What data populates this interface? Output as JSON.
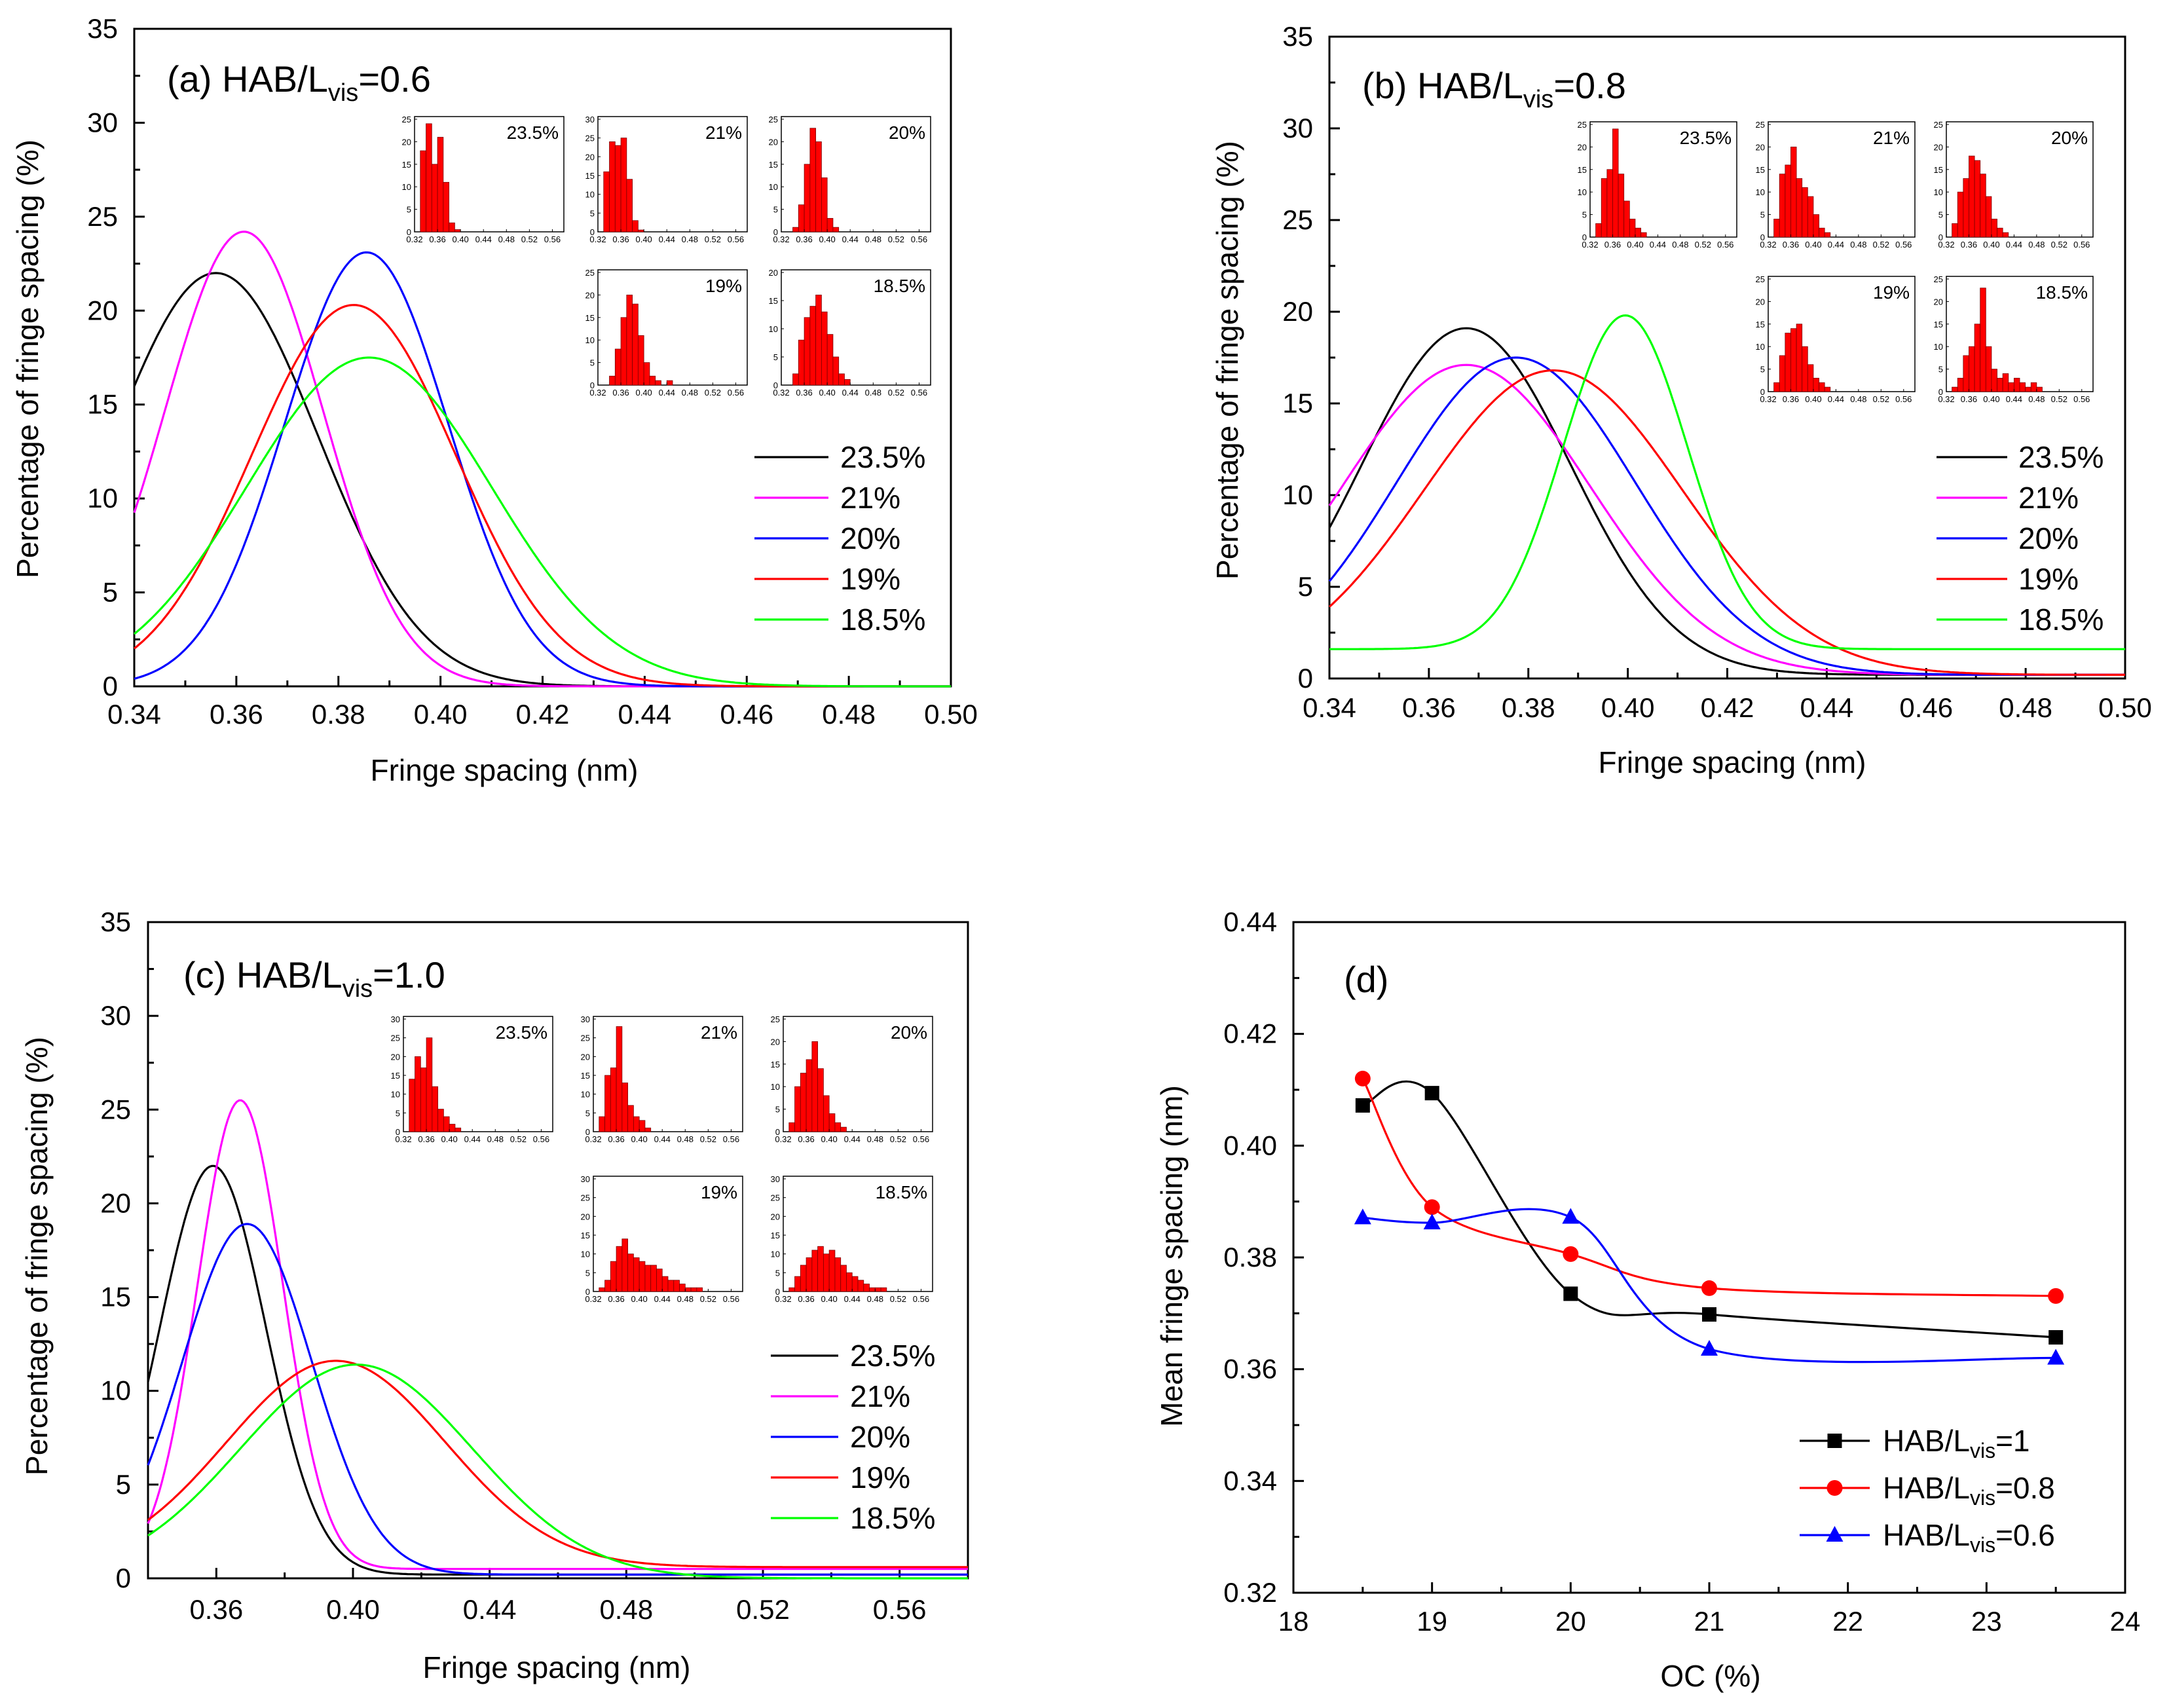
{
  "colors": {
    "23.5%": "#000000",
    "21%": "#ff00ff",
    "20%": "#0000ff",
    "19%": "#ff0000",
    "18.5%": "#00ff00",
    "hist": "#ff0000"
  },
  "chart_data": [
    {
      "id": "a",
      "type": "line",
      "title_main": "(a) HAB/L",
      "title_sub": "vis",
      "title_tail": "=0.6",
      "xlabel": "Fringe spacing (nm)",
      "ylabel": "Percentage of fringe spacing (%)",
      "xlim": [
        0.34,
        0.5
      ],
      "ylim": [
        0,
        35
      ],
      "xticks": [
        0.34,
        0.36,
        0.38,
        0.4,
        0.42,
        0.44,
        0.46,
        0.48,
        0.5
      ],
      "xtick_labels": [
        "0.34",
        "0.36",
        "0.38",
        "0.40",
        "0.42",
        "0.44",
        "0.46",
        "0.48",
        "0.50"
      ],
      "yticks": [
        0,
        5,
        10,
        15,
        20,
        25,
        30,
        35
      ],
      "ytick_labels": [
        "0",
        "5",
        "10",
        "15",
        "20",
        "25",
        "30",
        "35"
      ],
      "legend": [
        "23.5%",
        "21%",
        "20%",
        "19%",
        "18.5%"
      ],
      "series": [
        {
          "name": "23.5%",
          "base": 0.0,
          "amp": 22.0,
          "mu": 0.356,
          "sigma": 0.02
        },
        {
          "name": "21%",
          "base": 0.0,
          "amp": 24.2,
          "mu": 0.3615,
          "sigma": 0.0155
        },
        {
          "name": "20%",
          "base": 0.0,
          "amp": 23.1,
          "mu": 0.3855,
          "sigma": 0.016
        },
        {
          "name": "19%",
          "base": 0.0,
          "amp": 20.3,
          "mu": 0.383,
          "sigma": 0.02
        },
        {
          "name": "18.5%",
          "base": 0.0,
          "amp": 17.5,
          "mu": 0.386,
          "sigma": 0.024
        }
      ],
      "insets": [
        {
          "label": "23.5%",
          "xticks": [
            "0.32",
            "0.36",
            "0.40",
            "0.44",
            "0.48",
            "0.52",
            "0.56"
          ],
          "yticks": [
            "0",
            "5",
            "10",
            "15",
            "20",
            "25"
          ],
          "ymax": 25,
          "bins_start": 0.32,
          "bin_width": 0.01,
          "values": [
            0,
            18,
            24,
            15,
            21,
            11,
            2,
            0.5
          ]
        },
        {
          "label": "21%",
          "xticks": [
            "0.32",
            "0.36",
            "0.40",
            "0.44",
            "0.48",
            "0.52",
            "0.56"
          ],
          "yticks": [
            "0",
            "5",
            "10",
            "15",
            "20",
            "25",
            "30"
          ],
          "ymax": 30,
          "bins_start": 0.32,
          "bin_width": 0.01,
          "values": [
            0,
            16,
            24,
            23,
            25,
            14,
            3,
            0.5
          ]
        },
        {
          "label": "20%",
          "xticks": [
            "0.32",
            "0.36",
            "0.40",
            "0.44",
            "0.48",
            "0.52",
            "0.56"
          ],
          "yticks": [
            "0",
            "5",
            "10",
            "15",
            "20",
            "25"
          ],
          "ymax": 25,
          "bins_start": 0.32,
          "bin_width": 0.01,
          "values": [
            0,
            0,
            1,
            6,
            15,
            23,
            20,
            12,
            3,
            1
          ]
        },
        {
          "label": "19%",
          "xticks": [
            "0.32",
            "0.36",
            "0.40",
            "0.44",
            "0.48",
            "0.52",
            "0.56"
          ],
          "yticks": [
            "0",
            "5",
            "10",
            "15",
            "20",
            "25"
          ],
          "ymax": 25,
          "bins_start": 0.32,
          "bin_width": 0.01,
          "values": [
            0,
            0,
            2,
            8,
            15,
            20,
            18,
            11,
            5,
            2,
            1,
            0,
            1
          ]
        },
        {
          "label": "18.5%",
          "xticks": [
            "0.32",
            "0.36",
            "0.40",
            "0.44",
            "0.48",
            "0.52",
            "0.56"
          ],
          "yticks": [
            "0",
            "5",
            "10",
            "15",
            "20"
          ],
          "ymax": 20,
          "bins_start": 0.32,
          "bin_width": 0.01,
          "values": [
            0,
            0,
            2,
            8,
            12,
            14,
            16,
            13,
            9,
            5,
            2,
            1
          ]
        }
      ]
    },
    {
      "id": "b",
      "type": "line",
      "title_main": "(b) HAB/L",
      "title_sub": "vis",
      "title_tail": "=0.8",
      "xlabel": "Fringe spacing (nm)",
      "ylabel": "Percentage of fringe spacing (%)",
      "xlim": [
        0.34,
        0.5
      ],
      "ylim": [
        0,
        35
      ],
      "xticks": [
        0.34,
        0.36,
        0.38,
        0.4,
        0.42,
        0.44,
        0.46,
        0.48,
        0.5
      ],
      "xtick_labels": [
        "0.34",
        "0.36",
        "0.38",
        "0.40",
        "0.42",
        "0.44",
        "0.46",
        "0.48",
        "0.50"
      ],
      "yticks": [
        0,
        5,
        10,
        15,
        20,
        25,
        30,
        35
      ],
      "ytick_labels": [
        "0",
        "5",
        "10",
        "15",
        "20",
        "25",
        "30",
        "35"
      ],
      "legend": [
        "23.5%",
        "21%",
        "20%",
        "19%",
        "18.5%"
      ],
      "series": [
        {
          "name": "23.5%",
          "base": 0.2,
          "amp": 18.9,
          "mu": 0.3675,
          "sigma": 0.021
        },
        {
          "name": "21%",
          "base": 0.2,
          "amp": 16.9,
          "mu": 0.3675,
          "sigma": 0.025
        },
        {
          "name": "20%",
          "base": 0.2,
          "amp": 17.3,
          "mu": 0.3775,
          "sigma": 0.024
        },
        {
          "name": "19%",
          "base": 0.2,
          "amp": 16.6,
          "mu": 0.385,
          "sigma": 0.026
        },
        {
          "name": "18.5%",
          "base": 1.6,
          "amp": 18.2,
          "mu": 0.3995,
          "sigma": 0.0125
        }
      ],
      "insets": [
        {
          "label": "23.5%",
          "xticks": [
            "0.32",
            "0.36",
            "0.40",
            "0.44",
            "0.48",
            "0.52",
            "0.56"
          ],
          "yticks": [
            "0",
            "5",
            "10",
            "15",
            "20",
            "25"
          ],
          "ymax": 25,
          "bins_start": 0.32,
          "bin_width": 0.01,
          "values": [
            0,
            3,
            13,
            15,
            24,
            14,
            8,
            4,
            2,
            1
          ]
        },
        {
          "label": "21%",
          "xticks": [
            "0.32",
            "0.36",
            "0.40",
            "0.44",
            "0.48",
            "0.52",
            "0.56"
          ],
          "yticks": [
            "0",
            "5",
            "10",
            "15",
            "20",
            "25"
          ],
          "ymax": 25,
          "bins_start": 0.32,
          "bin_width": 0.01,
          "values": [
            0,
            4,
            14,
            16,
            20,
            13,
            11,
            9,
            5,
            2,
            1
          ]
        },
        {
          "label": "20%",
          "xticks": [
            "0.32",
            "0.36",
            "0.40",
            "0.44",
            "0.48",
            "0.52",
            "0.56"
          ],
          "yticks": [
            "0",
            "5",
            "10",
            "15",
            "20",
            "25"
          ],
          "ymax": 25,
          "bins_start": 0.32,
          "bin_width": 0.01,
          "values": [
            0,
            3,
            10,
            13,
            18,
            17,
            14,
            9,
            4,
            2,
            1
          ]
        },
        {
          "label": "19%",
          "xticks": [
            "0.32",
            "0.36",
            "0.40",
            "0.44",
            "0.48",
            "0.52",
            "0.56"
          ],
          "yticks": [
            "0",
            "5",
            "10",
            "15",
            "20",
            "25"
          ],
          "ymax": 25,
          "bins_start": 0.32,
          "bin_width": 0.01,
          "values": [
            0,
            2,
            8,
            13,
            14,
            15,
            10,
            6,
            3,
            2,
            1
          ]
        },
        {
          "label": "18.5%",
          "xticks": [
            "0.32",
            "0.36",
            "0.40",
            "0.44",
            "0.48",
            "0.52",
            "0.56"
          ],
          "yticks": [
            "0",
            "5",
            "10",
            "15",
            "20",
            "25"
          ],
          "ymax": 25,
          "bins_start": 0.32,
          "bin_width": 0.01,
          "values": [
            0,
            1,
            3,
            8,
            10,
            15,
            23,
            10,
            5,
            3,
            4,
            2,
            3,
            2,
            1,
            2,
            1
          ]
        }
      ]
    },
    {
      "id": "c",
      "type": "line",
      "title_main": "(c) HAB/L",
      "title_sub": "vis",
      "title_tail": "=1.0",
      "xlabel": "Fringe spacing (nm)",
      "ylabel": "Percentage of fringe spacing (%)",
      "xlim": [
        0.34,
        0.58
      ],
      "ylim": [
        0,
        35
      ],
      "xticks": [
        0.36,
        0.4,
        0.44,
        0.48,
        0.52,
        0.56
      ],
      "xtick_labels": [
        "0.36",
        "0.40",
        "0.44",
        "0.48",
        "0.52",
        "0.56"
      ],
      "yticks": [
        0,
        5,
        10,
        15,
        20,
        25,
        30,
        35
      ],
      "ytick_labels": [
        "0",
        "5",
        "10",
        "15",
        "20",
        "25",
        "30",
        "35"
      ],
      "legend": [
        "23.5%",
        "21%",
        "20%",
        "19%",
        "18.5%"
      ],
      "series": [
        {
          "name": "23.5%",
          "base": 0.2,
          "amp": 21.8,
          "mu": 0.359,
          "sigma": 0.0155
        },
        {
          "name": "21%",
          "base": 0.5,
          "amp": 25.0,
          "mu": 0.367,
          "sigma": 0.0125
        },
        {
          "name": "20%",
          "base": 0.2,
          "amp": 18.7,
          "mu": 0.369,
          "sigma": 0.019
        },
        {
          "name": "19%",
          "base": 0.6,
          "amp": 11.0,
          "mu": 0.395,
          "sigma": 0.032
        },
        {
          "name": "18.5%",
          "base": 0.0,
          "amp": 11.4,
          "mu": 0.401,
          "sigma": 0.034
        }
      ],
      "insets": [
        {
          "label": "23.5%",
          "xticks": [
            "0.32",
            "0.36",
            "0.40",
            "0.44",
            "0.48",
            "0.52",
            "0.56"
          ],
          "yticks": [
            "0",
            "5",
            "10",
            "15",
            "20",
            "25",
            "30"
          ],
          "ymax": 30,
          "bins_start": 0.32,
          "bin_width": 0.01,
          "values": [
            0,
            14,
            20,
            17,
            25,
            12,
            6,
            4,
            2,
            1
          ]
        },
        {
          "label": "21%",
          "xticks": [
            "0.32",
            "0.36",
            "0.40",
            "0.44",
            "0.48",
            "0.52",
            "0.56"
          ],
          "yticks": [
            "0",
            "5",
            "10",
            "15",
            "20",
            "25",
            "30"
          ],
          "ymax": 30,
          "bins_start": 0.32,
          "bin_width": 0.01,
          "values": [
            0,
            4,
            15,
            17,
            28,
            13,
            7,
            4,
            3,
            1
          ]
        },
        {
          "label": "20%",
          "xticks": [
            "0.32",
            "0.36",
            "0.40",
            "0.44",
            "0.48",
            "0.52",
            "0.56"
          ],
          "yticks": [
            "0",
            "5",
            "10",
            "15",
            "20",
            "25"
          ],
          "ymax": 25,
          "bins_start": 0.32,
          "bin_width": 0.01,
          "values": [
            0,
            2,
            10,
            13,
            16,
            20,
            14,
            8,
            4,
            2,
            1
          ]
        },
        {
          "label": "19%",
          "xticks": [
            "0.32",
            "0.36",
            "0.40",
            "0.44",
            "0.48",
            "0.52",
            "0.56"
          ],
          "yticks": [
            "0",
            "5",
            "10",
            "15",
            "20",
            "25",
            "30"
          ],
          "ymax": 30,
          "bins_start": 0.32,
          "bin_width": 0.01,
          "values": [
            0,
            1,
            3,
            8,
            12,
            14,
            10,
            9,
            8,
            7,
            7,
            6,
            4,
            3,
            3,
            2,
            1,
            1,
            1
          ]
        },
        {
          "label": "18.5%",
          "xticks": [
            "0.32",
            "0.36",
            "0.40",
            "0.44",
            "0.48",
            "0.52",
            "0.56"
          ],
          "yticks": [
            "0",
            "5",
            "10",
            "15",
            "20",
            "25",
            "30"
          ],
          "ymax": 30,
          "bins_start": 0.32,
          "bin_width": 0.01,
          "values": [
            0,
            1,
            4,
            7,
            9,
            11,
            12,
            10,
            11,
            9,
            7,
            5,
            4,
            3,
            2,
            1,
            1,
            1
          ]
        }
      ]
    },
    {
      "id": "d",
      "type": "line",
      "title_main": "(d)",
      "xlabel": "OC (%)",
      "ylabel": "Mean fringe spacing (nm)",
      "xlim": [
        18,
        24
      ],
      "ylim": [
        0.32,
        0.44
      ],
      "xticks": [
        18,
        19,
        20,
        21,
        22,
        23,
        24
      ],
      "xtick_labels": [
        "18",
        "19",
        "20",
        "21",
        "22",
        "23",
        "24"
      ],
      "yticks": [
        0.32,
        0.34,
        0.36,
        0.38,
        0.4,
        0.42,
        0.44
      ],
      "ytick_labels": [
        "0.32",
        "0.34",
        "0.36",
        "0.38",
        "0.40",
        "0.42",
        "0.44"
      ],
      "legend_main": [
        "HAB/L",
        "HAB/L",
        "HAB/L"
      ],
      "legend_sub": [
        "vis",
        "vis",
        "vis"
      ],
      "legend_tail": [
        "=1",
        "=0.8",
        "=0.6"
      ],
      "series": [
        {
          "name": "HAB/Lvis=1",
          "marker": "square",
          "color": "#000000",
          "x": [
            18.5,
            19,
            20,
            21,
            23.5
          ],
          "y": [
            0.4072,
            0.4094,
            0.3735,
            0.3698,
            0.3657
          ]
        },
        {
          "name": "HAB/Lvis=0.8",
          "marker": "circle",
          "color": "#ff0000",
          "x": [
            18.5,
            19,
            20,
            21,
            23.5
          ],
          "y": [
            0.412,
            0.389,
            0.3806,
            0.3745,
            0.3731
          ]
        },
        {
          "name": "HAB/Lvis=0.6",
          "marker": "triangle",
          "color": "#0000ff",
          "x": [
            18.5,
            19,
            20,
            21,
            23.5
          ],
          "y": [
            0.3871,
            0.3862,
            0.3872,
            0.3636,
            0.362
          ]
        }
      ]
    }
  ]
}
